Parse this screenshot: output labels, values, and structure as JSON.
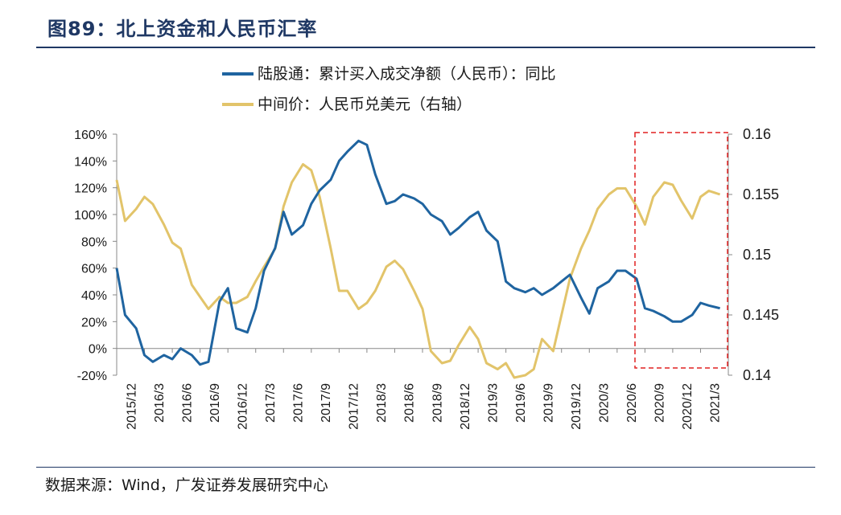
{
  "page": {
    "title": "图89：北上资金和人民币汇率",
    "source": "数据来源：Wind，广发证券发展研究中心"
  },
  "colors": {
    "blue_series": "#1f64a0",
    "gold_series": "#e2c46a",
    "highlight_box": "#e02020",
    "title": "#1f3864"
  },
  "chart_data": {
    "type": "line",
    "title": "北上资金和人民币汇率",
    "x_tick_labels": [
      "2015/12",
      "2016/3",
      "2016/6",
      "2016/9",
      "2016/12",
      "2017/3",
      "2017/6",
      "2017/9",
      "2017/12",
      "2018/3",
      "2018/6",
      "2018/9",
      "2018/12",
      "2019/3",
      "2019/6",
      "2019/9",
      "2019/12",
      "2020/3",
      "2020/6",
      "2020/9",
      "2020/12",
      "2021/3"
    ],
    "left_axis": {
      "min": -20,
      "max": 160,
      "ticks": [
        -20,
        0,
        20,
        40,
        60,
        80,
        100,
        120,
        140,
        160
      ],
      "tick_labels": [
        "-20%",
        "0%",
        "20%",
        "40%",
        "60%",
        "80%",
        "100%",
        "120%",
        "140%",
        "160%"
      ]
    },
    "right_axis": {
      "min": 0.14,
      "max": 0.16,
      "ticks": [
        0.14,
        0.145,
        0.15,
        0.155,
        0.16
      ],
      "tick_labels": [
        "0.14",
        "0.145",
        "0.15",
        "0.155",
        "0.16"
      ]
    },
    "legend_position": "top",
    "series": [
      {
        "name": "陆股通：累计买入成交净额（人民币）：同比",
        "axis": "left",
        "unit": "%",
        "x": [
          0,
          0.3,
          0.7,
          1,
          1.3,
          1.7,
          2,
          2.3,
          2.7,
          3,
          3.3,
          3.7,
          4,
          4.3,
          4.7,
          5,
          5.3,
          5.7,
          6,
          6.3,
          6.7,
          7,
          7.3,
          7.7,
          8,
          8.3,
          8.7,
          9,
          9.3,
          9.7,
          10,
          10.3,
          10.7,
          11,
          11.3,
          11.7,
          12,
          12.3,
          12.7,
          13,
          13.3,
          13.7,
          14,
          14.3,
          14.7,
          15,
          15.3,
          15.7,
          16,
          16.3,
          16.7,
          17,
          17.3,
          17.7,
          18,
          18.3,
          18.7,
          19,
          19.3,
          19.7,
          20,
          20.3,
          20.7,
          21,
          21.3,
          21.7
        ],
        "values": [
          60,
          25,
          15,
          -5,
          -10,
          -5,
          -8,
          0,
          -5,
          -12,
          -10,
          35,
          45,
          15,
          12,
          30,
          58,
          75,
          102,
          85,
          92,
          108,
          118,
          126,
          140,
          147,
          155,
          152,
          130,
          108,
          110,
          115,
          112,
          108,
          100,
          95,
          85,
          90,
          98,
          102,
          88,
          80,
          50,
          45,
          42,
          45,
          40,
          45,
          50,
          55,
          38,
          26,
          45,
          50,
          58,
          58,
          52,
          30,
          28,
          24,
          20,
          20,
          25,
          34,
          32,
          30
        ]
      },
      {
        "name": "中间价：人民币兑美元（右轴）",
        "axis": "right",
        "unit": "",
        "x": [
          0,
          0.3,
          0.7,
          1,
          1.3,
          1.7,
          2,
          2.3,
          2.7,
          3,
          3.3,
          3.7,
          4,
          4.3,
          4.7,
          5,
          5.3,
          5.7,
          6,
          6.3,
          6.7,
          7,
          7.3,
          7.7,
          8,
          8.3,
          8.7,
          9,
          9.3,
          9.7,
          10,
          10.3,
          10.7,
          11,
          11.3,
          11.7,
          12,
          12.3,
          12.7,
          13,
          13.3,
          13.7,
          14,
          14.3,
          14.7,
          15,
          15.3,
          15.7,
          16,
          16.3,
          16.7,
          17,
          17.3,
          17.7,
          18,
          18.3,
          18.7,
          19,
          19.3,
          19.7,
          20,
          20.3,
          20.7,
          21,
          21.3,
          21.7
        ],
        "values": [
          0.1562,
          0.1528,
          0.1538,
          0.1548,
          0.1542,
          0.1525,
          0.151,
          0.1505,
          0.1475,
          0.1465,
          0.1455,
          0.1465,
          0.146,
          0.146,
          0.1465,
          0.1478,
          0.149,
          0.1505,
          0.154,
          0.156,
          0.1575,
          0.157,
          0.1548,
          0.1505,
          0.147,
          0.147,
          0.1455,
          0.146,
          0.147,
          0.149,
          0.1495,
          0.1488,
          0.147,
          0.1455,
          0.142,
          0.141,
          0.1412,
          0.1425,
          0.144,
          0.143,
          0.141,
          0.1405,
          0.141,
          0.1398,
          0.14,
          0.1405,
          0.143,
          0.142,
          0.145,
          0.148,
          0.1505,
          0.152,
          0.1538,
          0.155,
          0.1555,
          0.1555,
          0.154,
          0.1525,
          0.1548,
          0.156,
          0.1558,
          0.1545,
          0.153,
          0.1548,
          0.1553,
          0.155
        ]
      }
    ],
    "annotation": "red dashed box highlighting 2020/7 onward"
  }
}
